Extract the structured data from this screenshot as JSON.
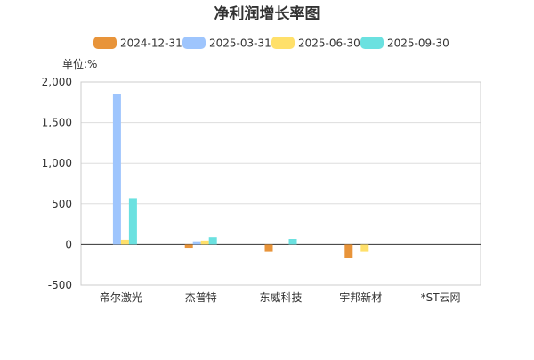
{
  "chart_data": {
    "type": "bar",
    "title": "净利润增长率图",
    "unit_label": "单位:%",
    "categories": [
      "帝尔激光",
      "杰普特",
      "东威科技",
      "宇邦新材",
      "*ST云网"
    ],
    "series": [
      {
        "name": "2024-12-31",
        "color": "#E8943A",
        "values": [
          null,
          -40,
          -90,
          -170,
          null
        ]
      },
      {
        "name": "2025-03-31",
        "color": "#9EC5FD",
        "values": [
          1850,
          30,
          null,
          null,
          null
        ]
      },
      {
        "name": "2025-06-30",
        "color": "#FFE06A",
        "values": [
          60,
          50,
          null,
          -90,
          null
        ]
      },
      {
        "name": "2025-09-30",
        "color": "#6BE1E0",
        "values": [
          570,
          90,
          70,
          null,
          null
        ]
      }
    ],
    "ylim": [
      -500,
      2000
    ],
    "yticks": [
      -500,
      0,
      500,
      1000,
      1500,
      2000
    ],
    "ytick_labels": [
      "-500",
      "0",
      "500",
      "1,000",
      "1,500",
      "2,000"
    ],
    "xlabel": "",
    "ylabel": "",
    "grid": true,
    "legend_position": "top"
  }
}
